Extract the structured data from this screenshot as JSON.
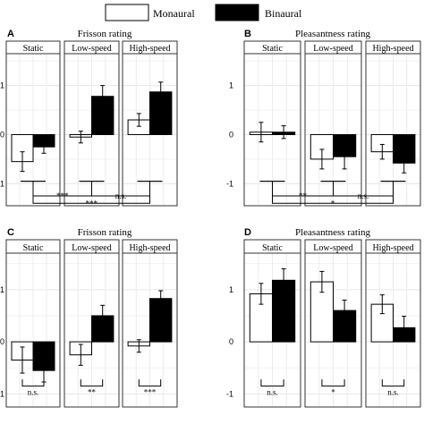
{
  "legend": [
    {
      "label": "Monaural",
      "color": "#ffffff"
    },
    {
      "label": "Binaural",
      "color": "#000000"
    }
  ],
  "chart_data": [
    {
      "type": "bar",
      "letter": "A",
      "title": "Frisson rating",
      "facets": [
        "Static",
        "Low-speed",
        "High-speed"
      ],
      "series": [
        {
          "name": "Monaural",
          "color": "#ffffff",
          "values": [
            -0.55,
            -0.05,
            0.3
          ],
          "err": [
            0.2,
            0.12,
            0.13
          ]
        },
        {
          "name": "Binaural",
          "color": "#000000",
          "values": [
            -0.25,
            0.78,
            0.87
          ],
          "err": [
            0.13,
            0.22,
            0.2
          ]
        }
      ],
      "yticks": [
        -1,
        0,
        1
      ],
      "ytick_labels": [
        "-1",
        "0",
        "1"
      ],
      "ylim": [
        -1.45,
        1.65
      ],
      "grid": true,
      "comparisons": [
        {
          "type": "across",
          "groups": [
            0,
            1
          ],
          "level": 1,
          "label": "***"
        },
        {
          "type": "across",
          "groups": [
            1,
            2
          ],
          "level": 1,
          "label": "n.s."
        },
        {
          "type": "across",
          "groups": [
            0,
            2
          ],
          "level": 2,
          "label": "***"
        }
      ]
    },
    {
      "type": "bar",
      "letter": "B",
      "title": "Pleasantness rating",
      "facets": [
        "Static",
        "Low-speed",
        "High-speed"
      ],
      "series": [
        {
          "name": "Monaural",
          "color": "#ffffff",
          "values": [
            0.05,
            -0.5,
            -0.35
          ],
          "err": [
            0.2,
            0.2,
            0.15
          ]
        },
        {
          "name": "Binaural",
          "color": "#000000",
          "values": [
            0.05,
            -0.45,
            -0.58
          ],
          "err": [
            0.13,
            0.25,
            0.2
          ]
        }
      ],
      "yticks": [
        -1,
        0,
        1
      ],
      "ytick_labels": [
        "-1",
        "0",
        "1"
      ],
      "ylim": [
        -1.45,
        1.65
      ],
      "grid": true,
      "comparisons": [
        {
          "type": "across",
          "groups": [
            0,
            1
          ],
          "level": 1,
          "label": "**"
        },
        {
          "type": "across",
          "groups": [
            1,
            2
          ],
          "level": 1,
          "label": "n.s."
        },
        {
          "type": "across",
          "groups": [
            0,
            2
          ],
          "level": 2,
          "label": "*"
        }
      ]
    },
    {
      "type": "bar",
      "letter": "C",
      "title": "Frisson rating",
      "facets": [
        "Static",
        "Low-speed",
        "High-speed"
      ],
      "series": [
        {
          "name": "Monaural",
          "color": "#ffffff",
          "values": [
            -0.35,
            -0.25,
            -0.08
          ],
          "err": [
            0.25,
            0.2,
            0.12
          ]
        },
        {
          "name": "Binaural",
          "color": "#000000",
          "values": [
            -0.55,
            0.5,
            0.83
          ],
          "err": [
            0.22,
            0.2,
            0.15
          ]
        }
      ],
      "yticks": [
        -1,
        0,
        1
      ],
      "ytick_labels": [
        "-1",
        "0",
        "1"
      ],
      "ylim": [
        -1.25,
        1.7
      ],
      "grid": true,
      "comparisons": [
        {
          "type": "within",
          "group": 0,
          "label": "n.s."
        },
        {
          "type": "within",
          "group": 1,
          "label": "**"
        },
        {
          "type": "within",
          "group": 2,
          "label": "***"
        }
      ]
    },
    {
      "type": "bar",
      "letter": "D",
      "title": "Pleasantness rating",
      "facets": [
        "Static",
        "Low-speed",
        "High-speed"
      ],
      "series": [
        {
          "name": "Monaural",
          "color": "#ffffff",
          "values": [
            0.92,
            1.15,
            0.72
          ],
          "err": [
            0.2,
            0.2,
            0.18
          ]
        },
        {
          "name": "Binaural",
          "color": "#000000",
          "values": [
            1.18,
            0.6,
            0.27
          ],
          "err": [
            0.22,
            0.2,
            0.22
          ]
        }
      ],
      "yticks": [
        -1,
        0,
        1
      ],
      "ytick_labels": [
        "-1",
        "0",
        "1"
      ],
      "ylim": [
        -1.25,
        1.7
      ],
      "grid": true,
      "comparisons": [
        {
          "type": "within",
          "group": 0,
          "label": "n.s."
        },
        {
          "type": "within",
          "group": 1,
          "label": "*"
        },
        {
          "type": "within",
          "group": 2,
          "label": "n.s."
        }
      ]
    }
  ]
}
